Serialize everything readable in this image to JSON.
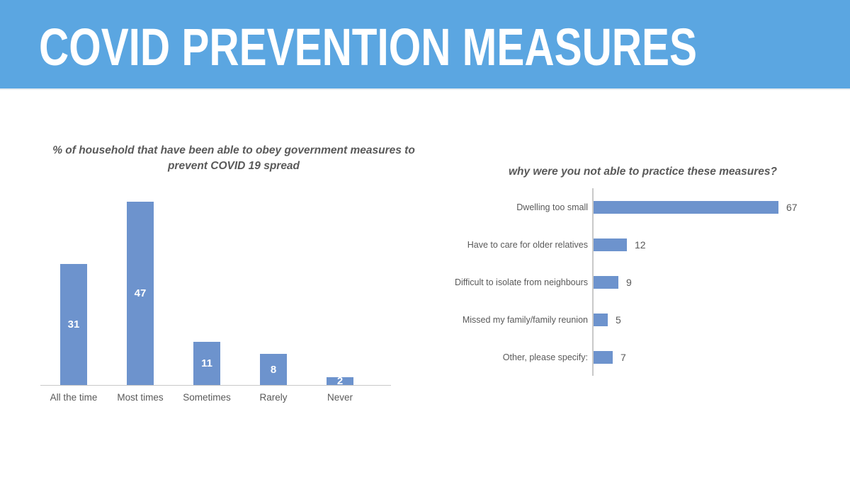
{
  "slide": {
    "title": "COVID PREVENTION MEASURES"
  },
  "colors": {
    "header_bg": "#5BA6E1",
    "bar_fill": "#6D93CD",
    "text_dark": "#595959",
    "axis_line": "#C9C9C9",
    "value_label_light": "#FFFFFF"
  },
  "chart_data": [
    {
      "type": "bar",
      "orientation": "vertical",
      "title": "% of household that have been able to obey government measures to prevent COVID 19 spread",
      "categories": [
        "All the time",
        "Most times",
        "Sometimes",
        "Rarely",
        "Never"
      ],
      "values": [
        31,
        47,
        11,
        8,
        2
      ],
      "ylim": [
        0,
        50
      ],
      "grid": false,
      "legend": "none",
      "data_labels": "inside-center-white-bold"
    },
    {
      "type": "bar",
      "orientation": "horizontal",
      "title": "why were you not able to practice these measures?",
      "categories": [
        "Dwelling too small",
        "Have to care for older relatives",
        "Difficult to isolate from neighbours",
        "Missed my family/family reunion",
        "Other, please specify:"
      ],
      "values": [
        67,
        12,
        9,
        5,
        7
      ],
      "xlim": [
        0,
        70
      ],
      "grid": false,
      "legend": "none",
      "data_labels": "outside-end-gray"
    }
  ]
}
